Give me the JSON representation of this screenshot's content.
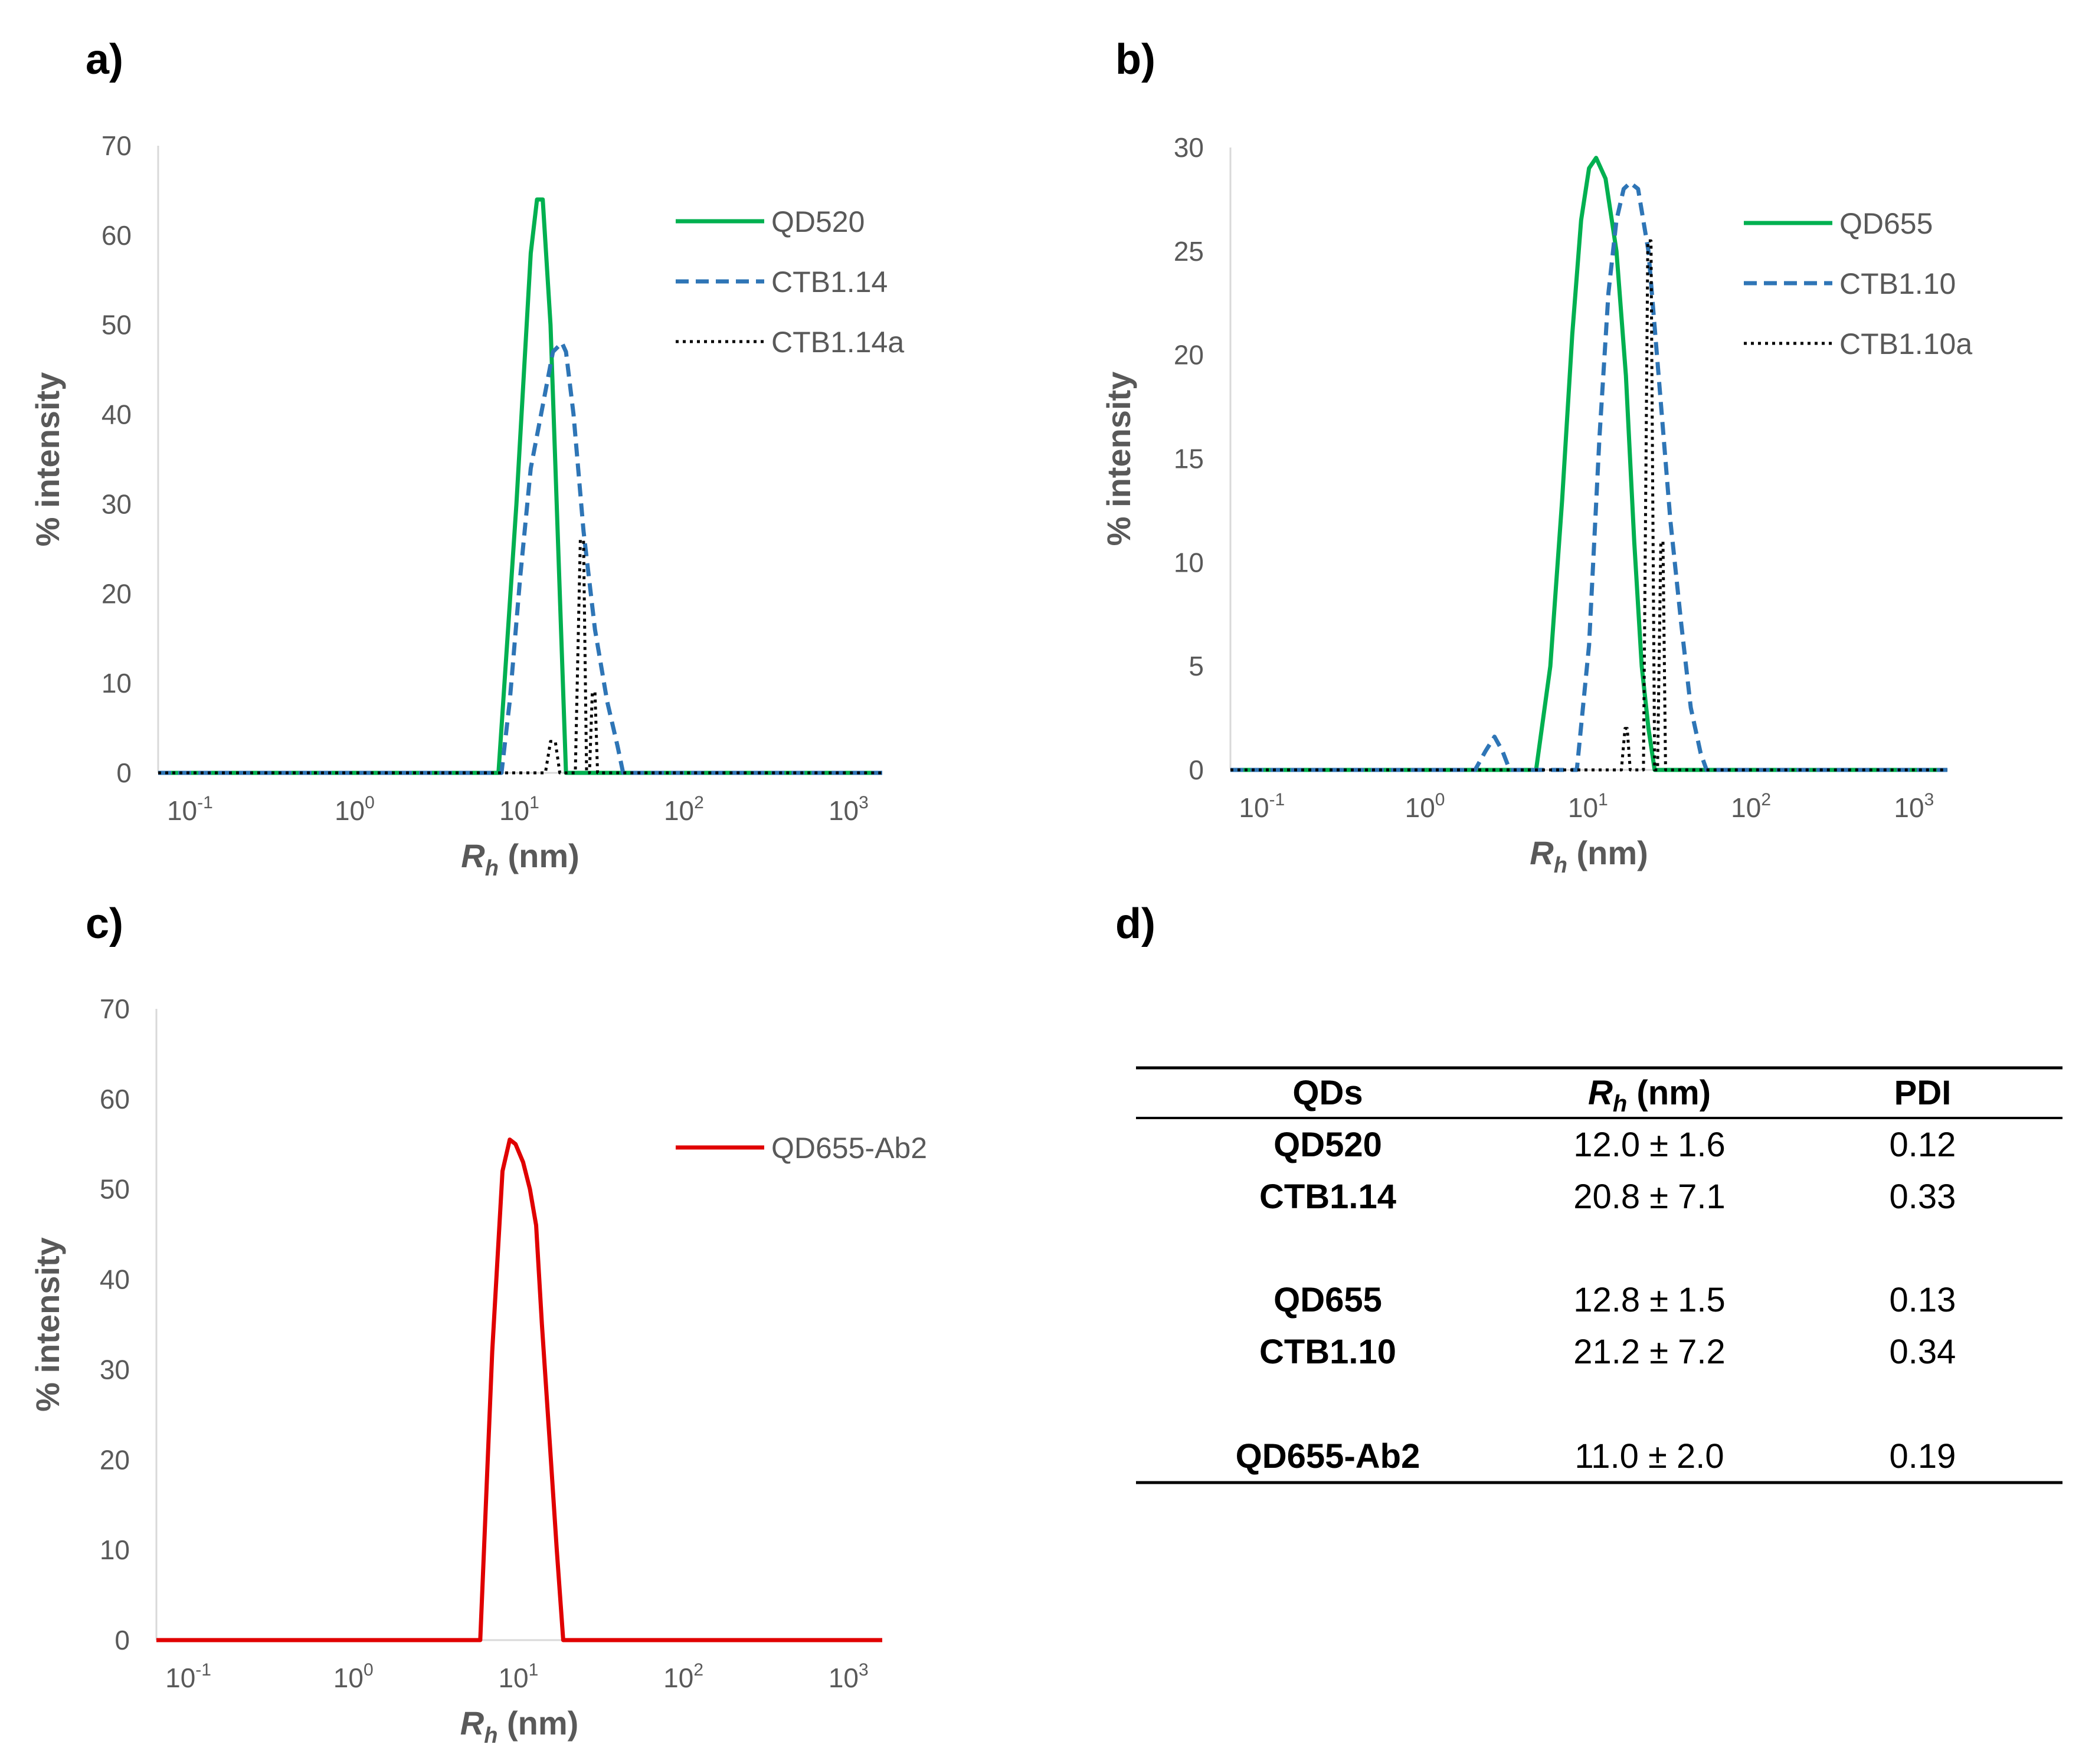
{
  "panels": {
    "a": {
      "label": "a)"
    },
    "b": {
      "label": "b)"
    },
    "c": {
      "label": "c)"
    },
    "d": {
      "label": "d)"
    }
  },
  "colors": {
    "green": "#00b050",
    "blue": "#2e75b6",
    "black": "#000000",
    "red": "#e00000",
    "axis": "#d9d9d9",
    "text": "#595959"
  },
  "chart_data": [
    {
      "id": "a",
      "type": "line",
      "title": "",
      "xscale": "log",
      "xlim": [
        0.06,
        1500
      ],
      "ylim": [
        0,
        70
      ],
      "yticks": [
        "0",
        "10",
        "20",
        "30",
        "40",
        "50",
        "60",
        "70"
      ],
      "xticks": [
        {
          "base": "10",
          "exp": "-1"
        },
        {
          "base": "10",
          "exp": "0"
        },
        {
          "base": "10",
          "exp": "1"
        },
        {
          "base": "10",
          "exp": "2"
        },
        {
          "base": "10",
          "exp": "3"
        }
      ],
      "xlabel": {
        "symbol": "R",
        "subscript": "h",
        "unit": "(nm)"
      },
      "ylabel": "% intensity",
      "legend_position": "top-right",
      "series": [
        {
          "name": "QD520",
          "style": "solid",
          "color": "#00b050",
          "x": [
            0.06,
            7.0,
            9.0,
            11.0,
            12.0,
            13.0,
            14.5,
            16.5,
            18.0,
            1500
          ],
          "y": [
            0,
            0,
            30,
            58,
            64,
            64,
            50,
            20,
            0,
            0
          ]
        },
        {
          "name": "CTB1.14",
          "style": "dashed",
          "color": "#2e75b6",
          "x": [
            0.06,
            7.3,
            8.2,
            9.5,
            11.0,
            13.0,
            15.0,
            17.0,
            18.0,
            20.0,
            23.0,
            27.0,
            32.0,
            37.0,
            40.0,
            1500
          ],
          "y": [
            0,
            0,
            8,
            22,
            34,
            41,
            47,
            48,
            47,
            40,
            27,
            16,
            8,
            3,
            0,
            0
          ]
        },
        {
          "name": "CTB1.14a",
          "style": "dotted",
          "color": "#000000",
          "x": [
            0.06,
            13.5,
            14.5,
            15.5,
            16.5,
            20.5,
            22.0,
            23.0,
            24.0,
            25.0,
            26.0,
            27.0,
            28.0,
            1500
          ],
          "y": [
            0,
            0,
            3.5,
            3.5,
            0,
            0,
            26,
            26,
            0,
            0,
            9,
            9,
            0,
            0
          ]
        }
      ]
    },
    {
      "id": "b",
      "type": "line",
      "title": "",
      "xscale": "log",
      "xlim": [
        0.06,
        1500
      ],
      "ylim": [
        0,
        30
      ],
      "yticks": [
        "0",
        "5",
        "10",
        "15",
        "20",
        "25",
        "30"
      ],
      "xticks": [
        {
          "base": "10",
          "exp": "-1"
        },
        {
          "base": "10",
          "exp": "0"
        },
        {
          "base": "10",
          "exp": "1"
        },
        {
          "base": "10",
          "exp": "2"
        },
        {
          "base": "10",
          "exp": "3"
        }
      ],
      "xlabel": {
        "symbol": "R",
        "subscript": "h",
        "unit": "(nm)"
      },
      "ylabel": "% intensity",
      "legend_position": "top-right",
      "series": [
        {
          "name": "QD655",
          "style": "solid",
          "color": "#00b050",
          "x": [
            0.06,
            4.5,
            5.5,
            6.5,
            7.5,
            8.5,
            9.5,
            10.5,
            12.0,
            14.0,
            16.0,
            18.0,
            20.0,
            22.0,
            24.0,
            1500
          ],
          "y": [
            0,
            0,
            5,
            13,
            21,
            26.5,
            29,
            29.5,
            28.5,
            25,
            19,
            11,
            5,
            2,
            0,
            0
          ]
        },
        {
          "name": "CTB1.10",
          "style": "dashed",
          "color": "#2e75b6",
          "x": [
            0.06,
            1.9,
            2.2,
            2.5,
            2.8,
            3.1,
            8.0,
            9.5,
            11.0,
            12.5,
            14.0,
            15.5,
            17.0,
            19.0,
            22.0,
            26.0,
            30.0,
            35.0,
            40.0,
            46.0,
            50.0,
            1500
          ],
          "y": [
            0,
            0,
            0.9,
            1.6,
            0.9,
            0,
            0,
            6,
            16,
            23,
            26.5,
            28,
            28.3,
            28,
            25,
            18,
            12,
            7,
            3,
            0.8,
            0,
            0
          ]
        },
        {
          "name": "CTB1.10a",
          "style": "dotted",
          "color": "#000000",
          "x": [
            0.06,
            15.0,
            15.8,
            16.3,
            17.0,
            20.5,
            21.8,
            22.8,
            24.0,
            25.0,
            26.2,
            27.0,
            28.0,
            1500
          ],
          "y": [
            0,
            0,
            2,
            2,
            0,
            0,
            25.5,
            25.5,
            0,
            0,
            11,
            11,
            0,
            0
          ]
        }
      ]
    },
    {
      "id": "c",
      "type": "line",
      "title": "",
      "xscale": "log",
      "xlim": [
        0.06,
        1500
      ],
      "ylim": [
        0,
        70
      ],
      "yticks": [
        "0",
        "10",
        "20",
        "30",
        "40",
        "50",
        "60",
        "70"
      ],
      "xticks": [
        {
          "base": "10",
          "exp": "-1"
        },
        {
          "base": "10",
          "exp": "0"
        },
        {
          "base": "10",
          "exp": "1"
        },
        {
          "base": "10",
          "exp": "2"
        },
        {
          "base": "10",
          "exp": "3"
        }
      ],
      "xlabel": {
        "symbol": "R",
        "subscript": "h",
        "unit": "(nm)"
      },
      "ylabel": "% intensity",
      "legend_position": "top-right",
      "series": [
        {
          "name": "QD655-Ab2",
          "style": "solid",
          "color": "#e00000",
          "x": [
            0.06,
            5.5,
            6.5,
            7.5,
            8.3,
            9.0,
            10.0,
            11.0,
            12.0,
            13.0,
            14.5,
            16.0,
            17.5,
            1500
          ],
          "y": [
            0,
            0,
            32,
            52,
            55.5,
            55,
            53,
            50,
            46,
            35,
            22,
            10,
            0,
            0
          ]
        }
      ]
    }
  ],
  "table": {
    "headers": {
      "qds": "QDs",
      "rh_symbol": "R",
      "rh_sub": "h",
      "rh_unit": " (nm)",
      "pdi": "PDI"
    },
    "rows": [
      {
        "name": "QD520",
        "rh": "12.0 ± 1.6",
        "pdi": "0.12"
      },
      {
        "name": "CTB1.14",
        "rh": "20.8 ± 7.1",
        "pdi": "0.33"
      },
      {
        "name": "QD655",
        "rh": "12.8 ± 1.5",
        "pdi": "0.13"
      },
      {
        "name": "CTB1.10",
        "rh": "21.2 ± 7.2",
        "pdi": "0.34"
      },
      {
        "name": "QD655-Ab2",
        "rh": "11.0 ± 2.0",
        "pdi": "0.19"
      }
    ]
  }
}
